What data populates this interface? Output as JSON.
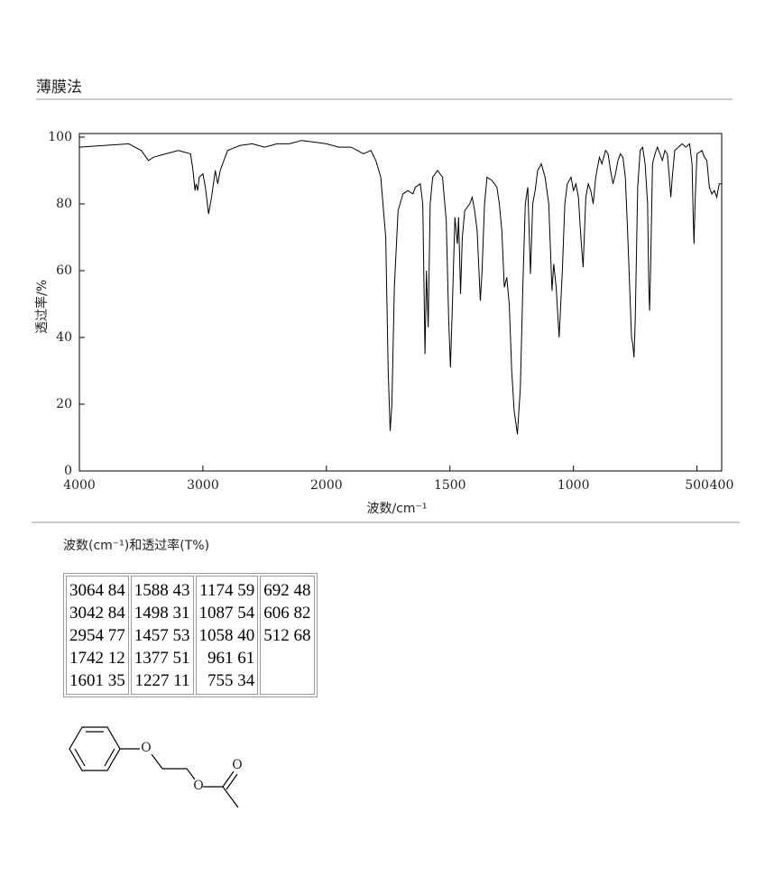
{
  "header": {
    "title": "薄膜法"
  },
  "chart_data": {
    "type": "line",
    "x_label": "波数/cm⁻¹",
    "y_label": "透过率/%",
    "xlim": [
      4000,
      400
    ],
    "ylim": [
      0,
      100
    ],
    "xticks": [
      4000,
      3000,
      2000,
      1500,
      1000,
      500,
      400
    ],
    "yticks": [
      0,
      20,
      40,
      60,
      80,
      100
    ],
    "grid": false,
    "x": [
      4000,
      3800,
      3600,
      3500,
      3440,
      3400,
      3300,
      3200,
      3100,
      3080,
      3064,
      3055,
      3042,
      3030,
      3000,
      2980,
      2954,
      2930,
      2900,
      2880,
      2860,
      2800,
      2700,
      2600,
      2500,
      2400,
      2300,
      2200,
      2100,
      2000,
      1950,
      1900,
      1850,
      1820,
      1800,
      1780,
      1760,
      1750,
      1742,
      1735,
      1725,
      1710,
      1690,
      1670,
      1650,
      1640,
      1620,
      1610,
      1601,
      1595,
      1588,
      1580,
      1570,
      1550,
      1530,
      1515,
      1505,
      1498,
      1490,
      1480,
      1470,
      1465,
      1457,
      1450,
      1440,
      1420,
      1410,
      1400,
      1390,
      1377,
      1370,
      1360,
      1350,
      1330,
      1310,
      1300,
      1290,
      1280,
      1270,
      1260,
      1250,
      1240,
      1227,
      1215,
      1205,
      1195,
      1185,
      1174,
      1165,
      1155,
      1145,
      1130,
      1115,
      1100,
      1090,
      1087,
      1080,
      1070,
      1058,
      1045,
      1035,
      1025,
      1010,
      1000,
      990,
      980,
      970,
      961,
      950,
      940,
      930,
      920,
      910,
      895,
      885,
      870,
      860,
      850,
      840,
      830,
      820,
      810,
      800,
      790,
      780,
      770,
      765,
      760,
      755,
      750,
      740,
      730,
      720,
      710,
      700,
      695,
      692,
      688,
      680,
      670,
      660,
      650,
      640,
      630,
      620,
      612,
      606,
      600,
      590,
      575,
      560,
      545,
      530,
      520,
      515,
      512,
      508,
      500,
      480,
      470,
      460,
      450,
      440,
      430,
      420,
      410,
      400
    ],
    "series": [
      {
        "color": "#000000",
        "values": [
          97,
          97.5,
          98,
          96,
          93,
          94,
          95,
          96,
          95,
          90,
          84,
          86,
          84,
          88,
          89,
          85,
          77,
          82,
          90,
          86,
          90,
          96,
          97.5,
          98,
          97,
          98,
          98,
          99,
          98.5,
          98,
          97,
          97,
          95,
          96,
          93,
          88,
          70,
          30,
          12,
          20,
          55,
          78,
          83,
          84,
          83,
          85,
          86,
          80,
          35,
          60,
          43,
          80,
          88,
          90,
          88,
          75,
          45,
          31,
          50,
          76,
          68,
          76,
          53,
          70,
          78,
          80,
          82,
          78,
          72,
          51,
          60,
          80,
          88,
          87,
          85,
          80,
          72,
          55,
          58,
          50,
          30,
          18,
          11,
          25,
          55,
          80,
          85,
          59,
          80,
          84,
          90,
          92,
          88,
          80,
          60,
          54,
          62,
          55,
          40,
          60,
          80,
          86,
          88,
          84,
          86,
          82,
          70,
          61,
          82,
          86,
          84,
          80,
          88,
          94,
          92,
          96,
          95,
          90,
          86,
          89,
          93,
          95,
          94,
          88,
          70,
          50,
          40,
          38,
          34,
          45,
          85,
          96,
          97,
          92,
          80,
          55,
          48,
          60,
          92,
          95,
          97,
          95,
          93,
          96,
          95,
          88,
          82,
          88,
          96,
          97,
          98,
          97,
          98,
          92,
          75,
          68,
          80,
          95,
          96,
          94,
          93,
          85,
          83,
          84,
          82,
          86,
          86
        ]
      }
    ]
  },
  "peak_table": {
    "caption": "波数(cm⁻¹)和透过率(T%)",
    "columns": [
      [
        [
          3064,
          84
        ],
        [
          3042,
          84
        ],
        [
          2954,
          77
        ],
        [
          1742,
          12
        ],
        [
          1601,
          35
        ]
      ],
      [
        [
          1588,
          43
        ],
        [
          1498,
          31
        ],
        [
          1457,
          53
        ],
        [
          1377,
          51
        ],
        [
          1227,
          11
        ]
      ],
      [
        [
          1174,
          59
        ],
        [
          1087,
          54
        ],
        [
          1058,
          40
        ],
        [
          961,
          61
        ],
        [
          755,
          34
        ]
      ],
      [
        [
          692,
          48
        ],
        [
          606,
          82
        ],
        [
          512,
          68
        ]
      ]
    ]
  },
  "structure": {
    "atom_labels": [
      "O",
      "O",
      "O"
    ]
  }
}
